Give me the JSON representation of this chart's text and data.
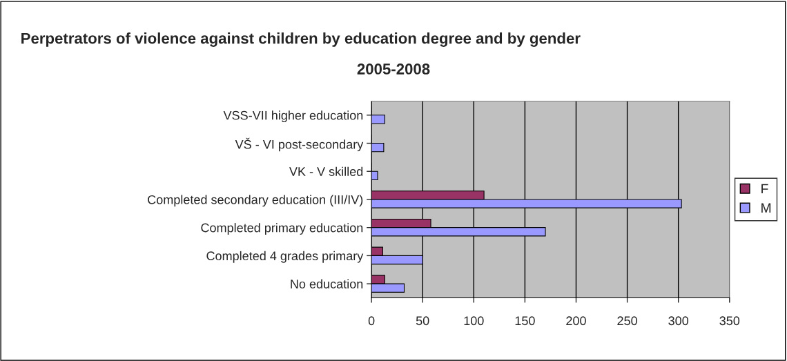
{
  "chart_data": {
    "type": "bar",
    "orientation": "horizontal",
    "title": "Perpetrators of violence against children by education degree and by gender",
    "subtitle": "2005-2008",
    "categories": [
      "VSS-VII higher education",
      "VŠ - VI post-secondary",
      "VK - V skilled",
      "Completed secondary education (III/IV)",
      "Completed primary education",
      "Completed 4 grades primary",
      "No education"
    ],
    "series": [
      {
        "name": "F",
        "color": "#993366",
        "values": [
          0,
          0,
          0,
          110,
          58,
          11,
          13
        ]
      },
      {
        "name": "M",
        "color": "#9999ff",
        "values": [
          13,
          12,
          6,
          303,
          170,
          50,
          32
        ]
      }
    ],
    "xlim": [
      0,
      350
    ],
    "xticks": [
      0,
      50,
      100,
      150,
      200,
      250,
      300,
      350
    ],
    "grid": "x",
    "legend": "right"
  }
}
